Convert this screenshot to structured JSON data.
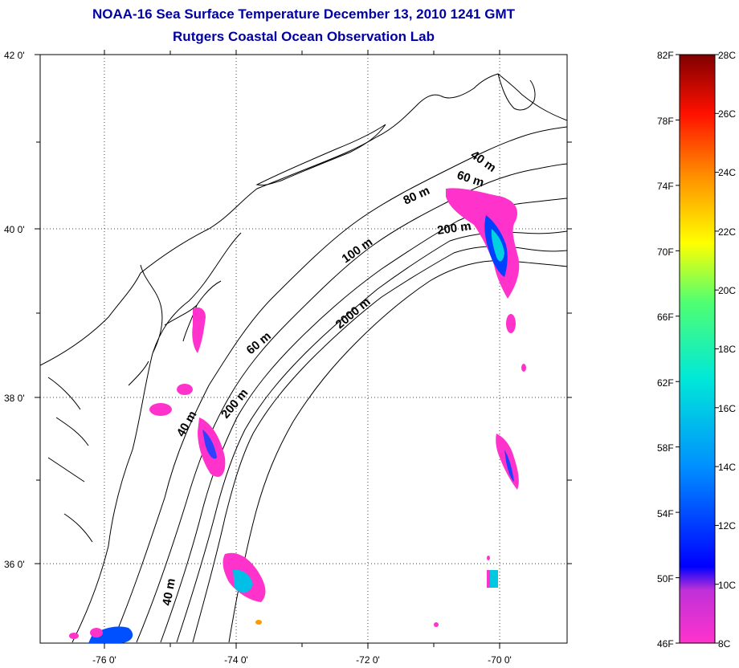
{
  "title": "NOAA-16 Sea Surface Temperature December 13, 2010 1241 GMT",
  "subtitle": "Rutgers Coastal Ocean Observation Lab",
  "map": {
    "lon_ticks": [
      "-76 0'",
      "-74 0'",
      "-72 0'",
      "-70 0'"
    ],
    "lat_ticks": [
      "42 0'",
      "40 0'",
      "38 0'",
      "36 0'"
    ],
    "lon_range": [
      -77,
      -69
    ],
    "lat_range": [
      35,
      42
    ],
    "contour_labels": [
      "40 m",
      "60 m",
      "80 m",
      "200 m",
      "100 m",
      "2000 m",
      "60 m",
      "200 m",
      "40 m",
      "40 m"
    ]
  },
  "colorbar": {
    "f_labels": [
      "82F",
      "78F",
      "74F",
      "70F",
      "66F",
      "62F",
      "58F",
      "54F",
      "50F",
      "46F"
    ],
    "c_labels": [
      "28C",
      "26C",
      "24C",
      "22C",
      "20C",
      "18C",
      "16C",
      "14C",
      "12C",
      "10C",
      "8C"
    ],
    "range_c": [
      8,
      28
    ],
    "colors": [
      "#ff33cc",
      "#9a2ed8",
      "#0000ff",
      "#0080ff",
      "#00e0e0",
      "#40ff80",
      "#ffff00",
      "#ff8000",
      "#ff1000",
      "#800000"
    ]
  }
}
